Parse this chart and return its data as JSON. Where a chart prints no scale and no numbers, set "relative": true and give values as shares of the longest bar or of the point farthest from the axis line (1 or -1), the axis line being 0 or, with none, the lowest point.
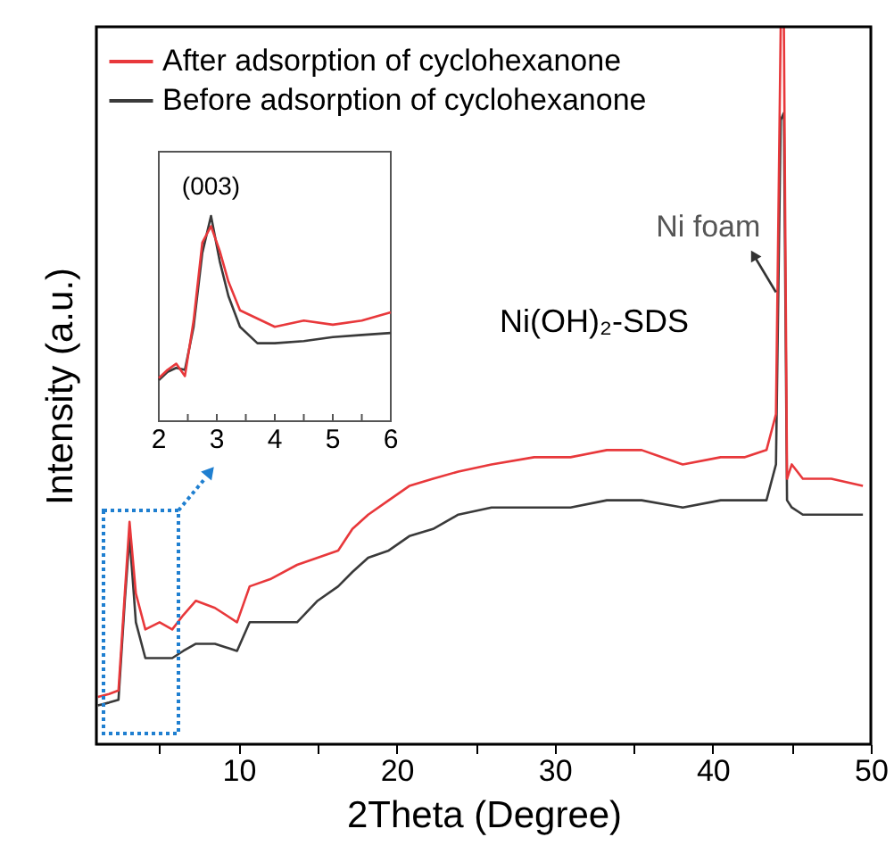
{
  "chart_data": [
    {
      "type": "line",
      "xlabel": "2Theta (Degree)",
      "ylabel": "Intensity (a.u.)",
      "relative": true,
      "legend": "top left",
      "grid": false,
      "x": [
        1.1,
        1.8,
        2.4,
        2.8,
        3.1,
        3.5,
        4.1,
        5.0,
        5.8,
        6.5,
        7.3,
        8.5,
        9.9,
        10.7,
        12.0,
        13.7,
        15.0,
        16.3,
        17.2,
        18.2,
        19.5,
        20.8,
        22.3,
        23.9,
        26.0,
        28.7,
        31.0,
        33.3,
        35.5,
        38.1,
        40.5,
        42.0,
        43.4,
        44.0,
        44.3,
        44.5,
        44.7,
        45.0,
        45.7,
        47.5,
        49.5
      ],
      "xlim": [
        1,
        50
      ],
      "xticks": [
        {
          "value": 5,
          "label": null
        },
        10,
        {
          "value": 15,
          "label": null
        },
        20,
        {
          "value": 25,
          "label": null
        },
        30,
        {
          "value": 35,
          "label": null
        },
        40,
        {
          "value": 45,
          "label": null
        },
        50
      ],
      "series": [
        {
          "name": "After adsorption of cyclohexanone",
          "color": "#e8383b",
          "values": [
            0.066,
            0.07,
            0.075,
            0.21,
            0.31,
            0.21,
            0.16,
            0.17,
            0.16,
            0.18,
            0.2,
            0.19,
            0.17,
            0.22,
            0.23,
            0.25,
            0.26,
            0.27,
            0.3,
            0.32,
            0.34,
            0.36,
            0.37,
            0.38,
            0.39,
            0.4,
            0.4,
            0.41,
            0.41,
            0.39,
            0.4,
            0.4,
            0.41,
            0.46,
            1.0,
            1.0,
            0.37,
            0.39,
            0.37,
            0.37,
            0.36
          ]
        },
        {
          "name": "Before adsorption of cyclohexanone",
          "color": "#3a3a3a",
          "values": [
            0.054,
            0.058,
            0.062,
            0.2,
            0.29,
            0.17,
            0.12,
            0.12,
            0.12,
            0.13,
            0.14,
            0.14,
            0.13,
            0.17,
            0.17,
            0.17,
            0.2,
            0.22,
            0.24,
            0.26,
            0.27,
            0.29,
            0.3,
            0.32,
            0.33,
            0.33,
            0.33,
            0.34,
            0.34,
            0.33,
            0.34,
            0.34,
            0.34,
            0.39,
            0.87,
            0.88,
            0.34,
            0.33,
            0.32,
            0.32,
            0.32
          ]
        }
      ],
      "annotations": [
        {
          "text": "Ni foam",
          "x": 44.0,
          "y": 0.63
        },
        "Ni(OH)₂-SDS"
      ]
    },
    {
      "type": "line",
      "relative": true,
      "tick_labels": "x",
      "x": [
        2.0,
        2.15,
        2.3,
        2.45,
        2.6,
        2.75,
        2.9,
        3.05,
        3.2,
        3.4,
        3.7,
        4.0,
        4.5,
        5.0,
        5.5,
        6.0
      ],
      "xlim": [
        2,
        6
      ],
      "xticks": [
        2,
        {
          "value": 2.5,
          "label": null
        },
        3,
        {
          "value": 3.5,
          "label": null
        },
        4,
        {
          "value": 4.5,
          "label": null
        },
        5,
        {
          "value": 5.5,
          "label": null
        },
        6
      ],
      "series": [
        {
          "color": "#3a3a3a",
          "values": [
            0.2,
            0.24,
            0.26,
            0.25,
            0.46,
            0.82,
            1.0,
            0.78,
            0.61,
            0.46,
            0.38,
            0.38,
            0.39,
            0.41,
            0.42,
            0.43
          ]
        },
        {
          "color": "#e8383b",
          "values": [
            0.21,
            0.25,
            0.28,
            0.22,
            0.49,
            0.87,
            0.95,
            0.83,
            0.68,
            0.54,
            0.5,
            0.46,
            0.49,
            0.47,
            0.49,
            0.53
          ]
        }
      ],
      "annotations": [
        {
          "text": "(003)",
          "x": 2.9,
          "y": 1.0
        }
      ]
    }
  ]
}
